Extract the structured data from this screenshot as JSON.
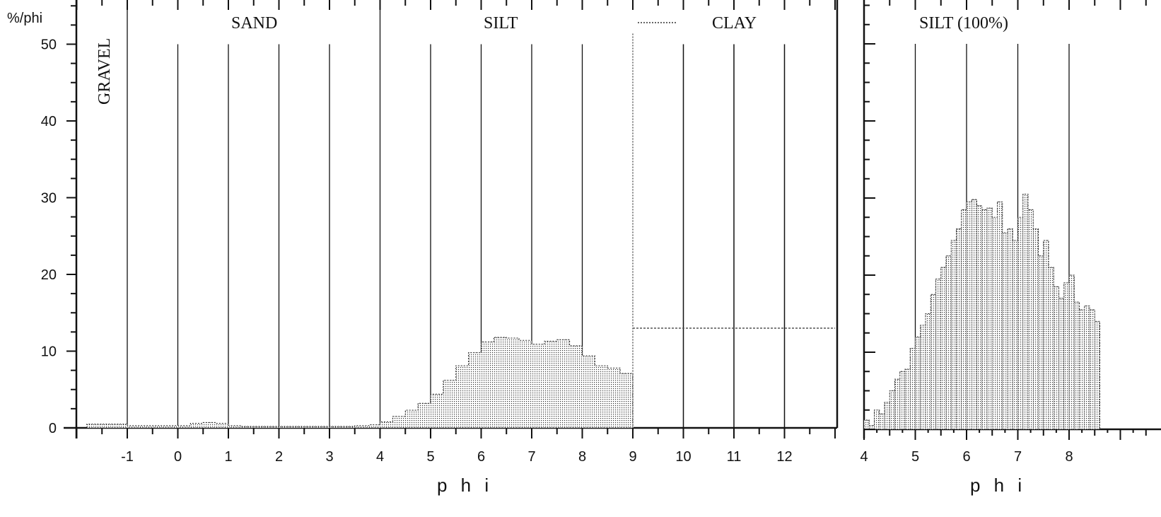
{
  "chart_data": [
    {
      "type": "area",
      "ylabel": "%/phi",
      "xlabel": "p h i",
      "xlim": [
        -2,
        13
      ],
      "ylim": [
        0,
        55
      ],
      "x_ticks": [
        "-1",
        "0",
        "1",
        "2",
        "3",
        "4",
        "5",
        "6",
        "7",
        "8",
        "9",
        "10",
        "11",
        "12"
      ],
      "y_ticks": [
        "0",
        "10",
        "20",
        "30",
        "40",
        "50"
      ],
      "zones": [
        "GRAVEL",
        "SAND",
        "SILT",
        "CLAY"
      ],
      "series": [
        {
          "x": [
            -1.8,
            -1,
            -0.5,
            0,
            0.25,
            0.5,
            0.75,
            1,
            1.25,
            1.5,
            2,
            2.5,
            3,
            3.5,
            3.8,
            4,
            4.25,
            4.5,
            4.75,
            5,
            5.25,
            5.5,
            5.75,
            6,
            6.25,
            6.5,
            6.75,
            7,
            7.25,
            7.5,
            7.75,
            8,
            8.25,
            8.5,
            8.75,
            9
          ],
          "values": [
            0.5,
            0.3,
            0.3,
            0.3,
            0.6,
            0.7,
            0.6,
            0.3,
            0.2,
            0.2,
            0.2,
            0.2,
            0.2,
            0.3,
            0.4,
            0.8,
            1.5,
            2.3,
            3.2,
            4.4,
            6.2,
            8.1,
            9.8,
            11.2,
            11.8,
            11.7,
            11.4,
            10.9,
            11.3,
            11.5,
            10.7,
            9.4,
            8.1,
            7.8,
            7.1,
            6.4
          ]
        },
        {
          "name": "CLAY",
          "x": [
            9,
            13
          ],
          "values": [
            13.0,
            13.0
          ]
        }
      ]
    },
    {
      "type": "bar",
      "title": "SILT (100%)",
      "xlabel": "p h i",
      "xlim": [
        4,
        8.5
      ],
      "ylim": [
        0,
        50
      ],
      "x_ticks": [
        "4",
        "5",
        "6",
        "7",
        "8"
      ],
      "y_ticks": [
        "0",
        "10",
        "20",
        "30",
        "40",
        "50"
      ],
      "x": [
        4.0,
        4.1,
        4.2,
        4.3,
        4.4,
        4.5,
        4.6,
        4.7,
        4.8,
        4.9,
        5.0,
        5.1,
        5.2,
        5.3,
        5.4,
        5.5,
        5.6,
        5.7,
        5.8,
        5.9,
        6.0,
        6.1,
        6.2,
        6.3,
        6.4,
        6.5,
        6.6,
        6.7,
        6.8,
        6.9,
        7.0,
        7.1,
        7.2,
        7.3,
        7.4,
        7.5,
        7.6,
        7.7,
        7.8,
        7.9,
        8.0,
        8.1,
        8.2,
        8.3,
        8.4,
        8.5
      ],
      "values": [
        1.2,
        0.5,
        2.5,
        2.0,
        3.5,
        5.0,
        6.5,
        7.5,
        7.8,
        10.5,
        12.0,
        13.5,
        15.0,
        17.5,
        19.5,
        21.0,
        22.5,
        24.5,
        26.0,
        28.5,
        29.5,
        29.8,
        29.0,
        28.5,
        28.7,
        27.5,
        29.5,
        25.5,
        26.0,
        24.5,
        27.5,
        30.5,
        28.5,
        26.0,
        22.5,
        24.5,
        21.0,
        18.5,
        17.0,
        19.0,
        20.0,
        16.5,
        15.5,
        16.0,
        15.5,
        14.0
      ]
    }
  ]
}
